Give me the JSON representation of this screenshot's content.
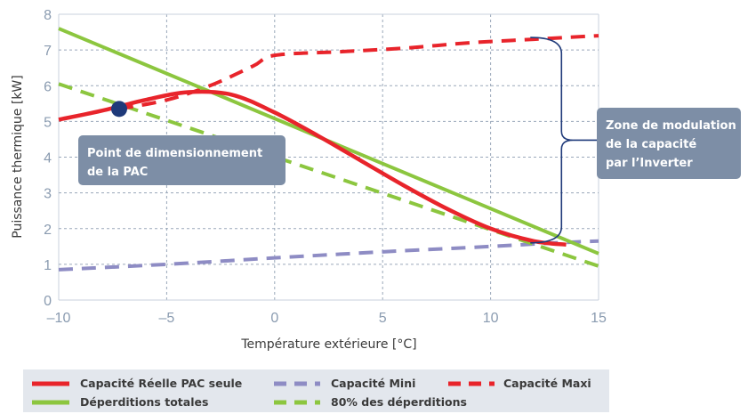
{
  "chart_data": {
    "type": "line",
    "xlabel": "Température extérieure [°C]",
    "ylabel": "Puissance thermique [kW]",
    "xlim": [
      -10,
      15
    ],
    "ylim": [
      0,
      8
    ],
    "x_ticks": [
      "–10",
      "–5",
      "0",
      "5",
      "10",
      "15"
    ],
    "y_ticks": [
      "0",
      "1",
      "2",
      "3",
      "4",
      "5",
      "6",
      "7",
      "8"
    ],
    "grid": true,
    "series": [
      {
        "name": "Capacité Réelle PAC seule",
        "style": "solid",
        "color": "#e8242b",
        "x": [
          -10,
          -8,
          -6,
          -4,
          -2,
          0,
          2,
          4,
          6,
          8,
          10,
          12,
          13.5
        ],
        "y": [
          5.05,
          5.3,
          5.6,
          5.82,
          5.75,
          5.25,
          4.6,
          3.9,
          3.2,
          2.55,
          2.0,
          1.65,
          1.55
        ]
      },
      {
        "name": "Déperditions totales",
        "style": "solid",
        "color": "#8cc63f",
        "x": [
          -10,
          15
        ],
        "y": [
          7.6,
          1.3
        ]
      },
      {
        "name": "Capacité Mini",
        "style": "dashed",
        "color": "#8e8cc4",
        "x": [
          -10,
          -5,
          0,
          5,
          10,
          13,
          15
        ],
        "y": [
          0.85,
          1.0,
          1.18,
          1.35,
          1.5,
          1.6,
          1.65
        ]
      },
      {
        "name": "80% des déperditions",
        "style": "dashed",
        "color": "#8cc63f",
        "x": [
          -10,
          15
        ],
        "y": [
          6.05,
          0.95
        ]
      },
      {
        "name": "Capacité Maxi",
        "style": "dashed",
        "color": "#e8242b",
        "x": [
          -7.2,
          -5,
          -3,
          -1,
          0,
          3,
          6,
          9,
          12,
          15
        ],
        "y": [
          5.35,
          5.6,
          6.0,
          6.55,
          6.85,
          6.95,
          7.05,
          7.2,
          7.3,
          7.4
        ]
      }
    ],
    "point": {
      "label": "Point de dimensionnement de la PAC",
      "label_lines": [
        "Point de dimensionnement",
        "de la PAC"
      ],
      "x": -7.2,
      "y": 5.35,
      "color": "#1f3a7a"
    },
    "annotation": {
      "label": "Zone de modulation de la capacité par l’Inverter",
      "label_lines": [
        "Zone de modulation",
        "de la capacité",
        "par l’Inverter"
      ],
      "x": 13.2,
      "y_low": 1.6,
      "y_high": 7.35,
      "color": "#7d8ea6"
    },
    "legend": {
      "placement": "bottom",
      "background": "#e3e7ed"
    }
  }
}
